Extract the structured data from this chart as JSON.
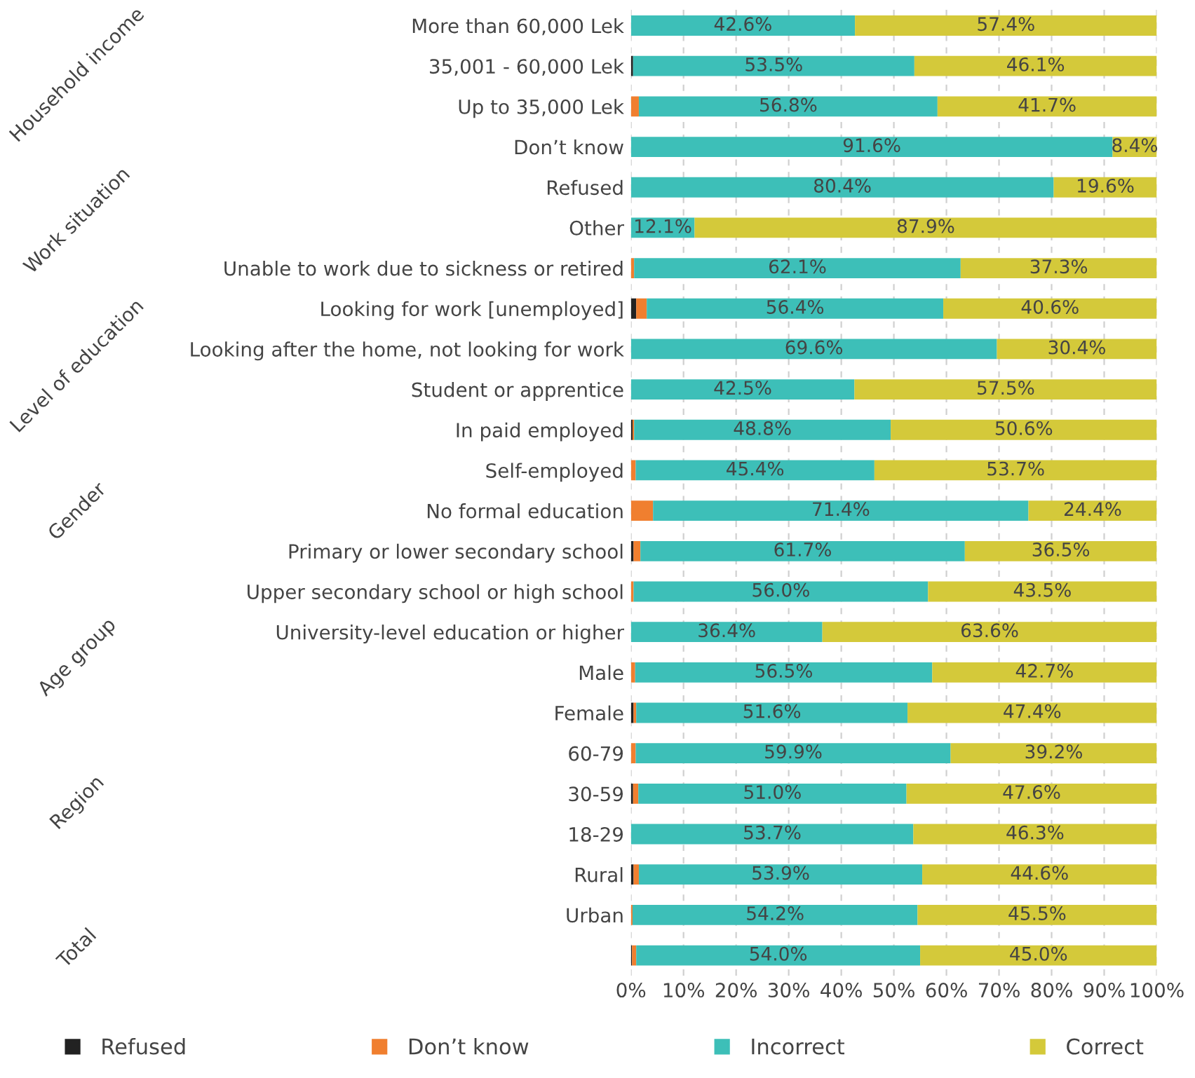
{
  "chart_data": {
    "type": "bar",
    "orientation": "horizontal",
    "stacked": true,
    "categories": [
      "More than 60,000 Lek",
      "35,001 - 60,000 Lek",
      "Up to 35,000 Lek",
      "Don’t know",
      "Refused",
      "Other",
      "Unable to work due to sickness or retired",
      "Looking for work [unemployed]",
      "Looking after the home, not looking for work",
      "Student or apprentice",
      "In paid employed",
      "Self-employed",
      "No formal education",
      "Primary or lower secondary school",
      "Upper secondary school or high school",
      "University-level education or higher",
      "Male",
      "Female",
      "60-79",
      "30-59",
      "18-29",
      "Rural",
      "Urban",
      null
    ],
    "series": [
      {
        "name": "Refused",
        "color": "#222222",
        "values": [
          0,
          0.4,
          0,
          0,
          0,
          0,
          0,
          1.0,
          0,
          0,
          0.3,
          0,
          0,
          0.5,
          0,
          0,
          0,
          0.5,
          0,
          0.4,
          0,
          0.5,
          0,
          0.2
        ]
      },
      {
        "name": "Don’t know",
        "color": "#f07f2f",
        "values": [
          0,
          0,
          1.5,
          0,
          0,
          0,
          0.6,
          2.0,
          0,
          0,
          0.3,
          0.9,
          4.2,
          1.3,
          0.5,
          0,
          0.8,
          0.5,
          0.9,
          1.0,
          0,
          1.0,
          0.3,
          0.8
        ]
      },
      {
        "name": "Incorrect",
        "color": "#3dbfb8",
        "values": [
          42.6,
          53.5,
          56.8,
          91.6,
          80.4,
          12.1,
          62.1,
          56.4,
          69.6,
          42.5,
          48.8,
          45.4,
          71.4,
          61.7,
          56.0,
          36.4,
          56.5,
          51.6,
          59.9,
          51.0,
          53.7,
          53.9,
          54.2,
          54.0
        ],
        "value_labels": [
          "42.6%",
          "53.5%",
          "56.8%",
          "91.6%",
          "80.4%",
          "12.1%",
          "62.1%",
          "56.4%",
          "69.6%",
          "42.5%",
          "48.8%",
          "45.4%",
          "71.4%",
          "61.7%",
          "56.0%",
          "36.4%",
          "56.5%",
          "51.6%",
          "59.9%",
          "51.0%",
          "53.7%",
          "53.9%",
          "54.2%",
          "54.0%"
        ]
      },
      {
        "name": "Correct",
        "color": "#d4c93a",
        "values": [
          57.4,
          46.1,
          41.7,
          8.4,
          19.6,
          87.9,
          37.3,
          40.6,
          30.4,
          57.5,
          50.6,
          53.7,
          24.4,
          36.5,
          43.5,
          63.6,
          42.7,
          47.4,
          39.2,
          47.6,
          46.3,
          44.6,
          45.5,
          45.0
        ],
        "value_labels": [
          "57.4%",
          "46.1%",
          "41.7%",
          "8.4%",
          "19.6%",
          "87.9%",
          "37.3%",
          "40.6%",
          "30.4%",
          "57.5%",
          "50.6%",
          "53.7%",
          "24.4%",
          "36.5%",
          "43.5%",
          "63.6%",
          "42.7%",
          "47.4%",
          "39.2%",
          "47.6%",
          "46.3%",
          "44.6%",
          "45.5%",
          "45.0%"
        ]
      }
    ],
    "xlim": [
      0,
      100
    ],
    "xticks": [
      {
        "value": 0,
        "label": "0%"
      },
      {
        "value": 10,
        "label": "10%"
      },
      {
        "value": 20,
        "label": "20%"
      },
      {
        "value": 30,
        "label": "30%"
      },
      {
        "value": 40,
        "label": "40%"
      },
      {
        "value": 50,
        "label": "50%"
      },
      {
        "value": 60,
        "label": "60%"
      },
      {
        "value": 70,
        "label": "70%"
      },
      {
        "value": 80,
        "label": "80%"
      },
      {
        "value": 90,
        "label": "90%"
      },
      {
        "value": 100,
        "label": "100%"
      }
    ],
    "annotations": [
      "Household income",
      "Work situation",
      "Level of education",
      "Gender",
      "Age group",
      "Region",
      "Total"
    ],
    "grid": "x",
    "legend": "bottom"
  }
}
